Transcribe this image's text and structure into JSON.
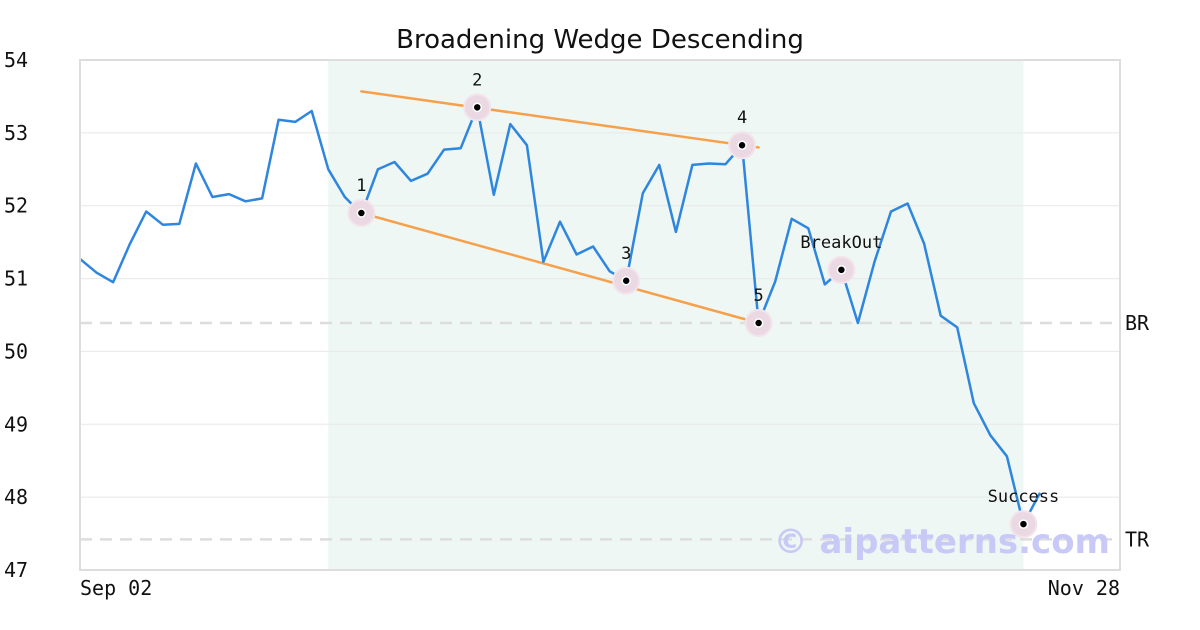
{
  "chart_data": {
    "type": "line",
    "title": "Broadening Wedge Descending",
    "xlabel": "",
    "ylabel": "",
    "ylim": [
      47,
      54
    ],
    "y_ticks": [
      "47",
      "48",
      "49",
      "50",
      "51",
      "52",
      "53",
      "54"
    ],
    "x_ticks": [
      "Sep 02",
      "Nov 28"
    ],
    "grid": "horizontal",
    "colors": {
      "price": "#2e86de",
      "trendline": "#f7a04b",
      "pattern_zone": "#eef7f3",
      "marker_halo": "#ead9e2",
      "reference": "#dddddd",
      "watermark": "#c9c9f7"
    },
    "series": [
      {
        "values": [
          51.27,
          51.08,
          50.95,
          51.47,
          51.92,
          51.74,
          51.75,
          52.58,
          52.12,
          52.16,
          52.06,
          52.1,
          53.18,
          53.15,
          53.3,
          52.5,
          52.12,
          51.89,
          52.5,
          52.6,
          52.34,
          52.44,
          52.77,
          52.79,
          53.35,
          52.15,
          53.12,
          52.83,
          51.23,
          51.78,
          51.33,
          51.44,
          51.1,
          50.97,
          52.17,
          52.56,
          51.64,
          52.56,
          52.58,
          52.57,
          52.83,
          50.39,
          50.96,
          51.82,
          51.69,
          50.92,
          51.12,
          50.39,
          51.23,
          51.92,
          52.03,
          51.48,
          50.49,
          50.33,
          49.29,
          48.85,
          48.56,
          47.63,
          48.06
        ]
      }
    ],
    "pattern_points": [
      {
        "label": "1",
        "index": 17,
        "value": 51.9
      },
      {
        "label": "2",
        "index": 24,
        "value": 53.35
      },
      {
        "label": "3",
        "index": 33,
        "value": 50.97
      },
      {
        "label": "4",
        "index": 40,
        "value": 52.83
      },
      {
        "label": "5",
        "index": 41,
        "value": 50.39
      },
      {
        "label": "BreakOut",
        "index": 46,
        "value": 51.12
      },
      {
        "label": "Success",
        "index": 57,
        "value": 47.63
      }
    ],
    "trendlines": [
      {
        "from": {
          "index": 17,
          "value": 53.57
        },
        "to": {
          "index": 41,
          "value": 52.8
        }
      },
      {
        "from": {
          "index": 17,
          "value": 51.9
        },
        "to": {
          "index": 41,
          "value": 50.39
        }
      }
    ],
    "pattern_zone": {
      "start_index": 15,
      "end_index": 57
    },
    "reference_lines": [
      {
        "label": "BR",
        "value": 50.39
      },
      {
        "label": "TR",
        "value": 47.42
      }
    ],
    "watermark": "© aipatterns.com"
  }
}
